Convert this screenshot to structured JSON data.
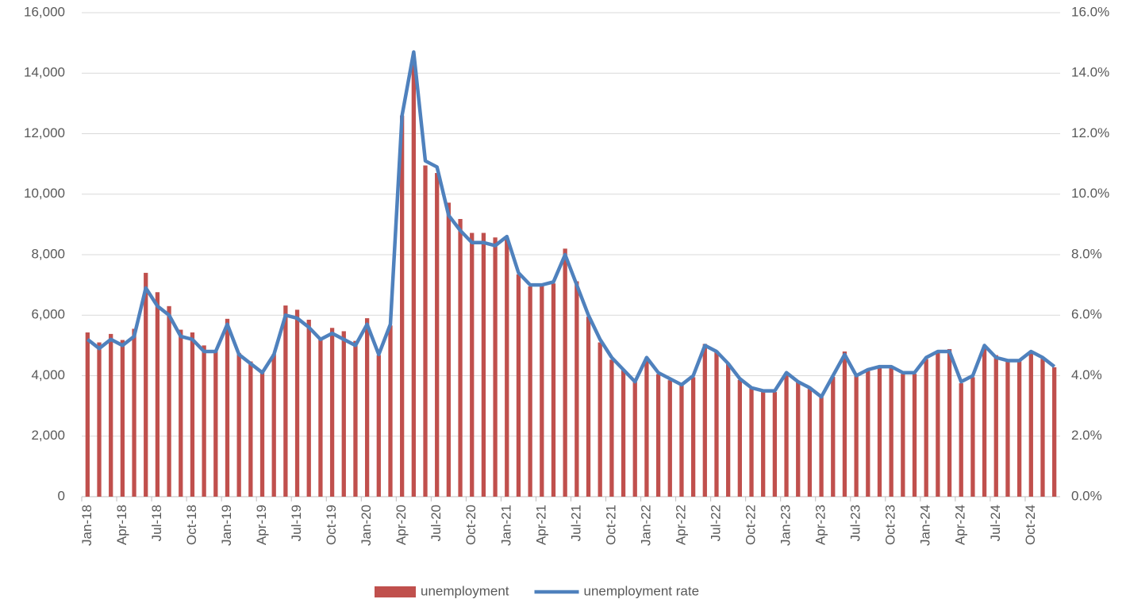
{
  "chart_data": {
    "type": "combo",
    "categories": [
      "Jan-18",
      null,
      null,
      "Apr-18",
      null,
      null,
      "Jul-18",
      null,
      null,
      "Oct-18",
      null,
      null,
      "Jan-19",
      null,
      null,
      "Apr-19",
      null,
      null,
      "Jul-19",
      null,
      null,
      "Oct-19",
      null,
      null,
      "Jan-20",
      null,
      null,
      "Apr-20",
      null,
      null,
      "Jul-20",
      null,
      null,
      "Oct-20",
      null,
      null,
      "Jan-21",
      null,
      null,
      "Apr-21",
      null,
      null,
      "Jul-21",
      null,
      null,
      "Oct-21",
      null,
      null,
      "Jan-22",
      null,
      null,
      "Apr-22",
      null,
      null,
      "Jul-22",
      null,
      null,
      "Oct-22",
      null,
      null,
      "Jan-23",
      null,
      null,
      "Apr-23",
      null,
      null,
      "Jul-23",
      null,
      null,
      "Oct-23",
      null,
      null,
      "Jan-24",
      null,
      null,
      "Apr-24",
      null,
      null,
      "Jul-24",
      null,
      null,
      "Oct-24",
      null,
      null
    ],
    "series": [
      {
        "name": "unemployment",
        "type": "bar",
        "color": "#c0504d",
        "values": [
          5430,
          5100,
          5380,
          5180,
          5550,
          7400,
          6760,
          6300,
          5520,
          5430,
          5000,
          4850,
          5880,
          4750,
          4470,
          4100,
          4720,
          6320,
          6180,
          5850,
          5250,
          5580,
          5470,
          5150,
          5900,
          4680,
          5660,
          12600,
          14500,
          10950,
          10700,
          9720,
          9180,
          8720,
          8720,
          8570,
          8560,
          7350,
          6950,
          6990,
          7050,
          8200,
          7120,
          5950,
          5100,
          4530,
          4200,
          3800,
          4550,
          4050,
          3850,
          3700,
          3950,
          5050,
          4820,
          4400,
          3860,
          3580,
          3460,
          3460,
          4050,
          3780,
          3560,
          3300,
          3960,
          4800,
          3990,
          4180,
          4290,
          4300,
          4060,
          4060,
          4550,
          4750,
          4880,
          3750,
          3950,
          4980,
          4680,
          4540,
          4490,
          4800,
          4560,
          4280
        ]
      },
      {
        "name": "unemployment rate",
        "type": "line",
        "axis": "y2",
        "color": "#4f81bd",
        "values": [
          5.2,
          4.9,
          5.2,
          5.0,
          5.3,
          6.9,
          6.3,
          6.0,
          5.3,
          5.2,
          4.8,
          4.8,
          5.7,
          4.7,
          4.4,
          4.1,
          4.7,
          6.0,
          5.9,
          5.6,
          5.2,
          5.4,
          5.2,
          5.0,
          5.7,
          4.7,
          5.7,
          12.6,
          14.7,
          11.1,
          10.9,
          9.3,
          8.8,
          8.4,
          8.4,
          8.3,
          8.6,
          7.4,
          7.0,
          7.0,
          7.1,
          8.0,
          7.0,
          6.0,
          5.2,
          4.6,
          4.2,
          3.8,
          4.6,
          4.1,
          3.9,
          3.7,
          4.0,
          5.0,
          4.8,
          4.4,
          3.9,
          3.6,
          3.5,
          3.5,
          4.1,
          3.8,
          3.6,
          3.3,
          4.0,
          4.7,
          4.0,
          4.2,
          4.3,
          4.3,
          4.1,
          4.1,
          4.6,
          4.8,
          4.8,
          3.8,
          4.0,
          5.0,
          4.6,
          4.5,
          4.5,
          4.8,
          4.6,
          4.3
        ]
      }
    ],
    "ylim": [
      0,
      16000
    ],
    "yticks": [
      0,
      {
        "value": 2000,
        "label": "2,000"
      },
      {
        "value": 4000,
        "label": "4,000"
      },
      {
        "value": 6000,
        "label": "6,000"
      },
      {
        "value": 8000,
        "label": "8,000"
      },
      {
        "value": 10000,
        "label": "10,000"
      },
      {
        "value": 12000,
        "label": "12,000"
      },
      {
        "value": 14000,
        "label": "14,000"
      },
      {
        "value": 16000,
        "label": "16,000"
      }
    ],
    "y2lim": [
      0,
      16
    ],
    "y2ticks": [
      {
        "value": 0,
        "label": "0.0%"
      },
      {
        "value": 2,
        "label": "2.0%"
      },
      {
        "value": 4,
        "label": "4.0%"
      },
      {
        "value": 6,
        "label": "6.0%"
      },
      {
        "value": 8,
        "label": "8.0%"
      },
      {
        "value": 10,
        "label": "10.0%"
      },
      {
        "value": 12,
        "label": "12.0%"
      },
      {
        "value": 14,
        "label": "14.0%"
      },
      {
        "value": 16,
        "label": "16.0%"
      }
    ],
    "grid": true,
    "legend": "bottom"
  }
}
